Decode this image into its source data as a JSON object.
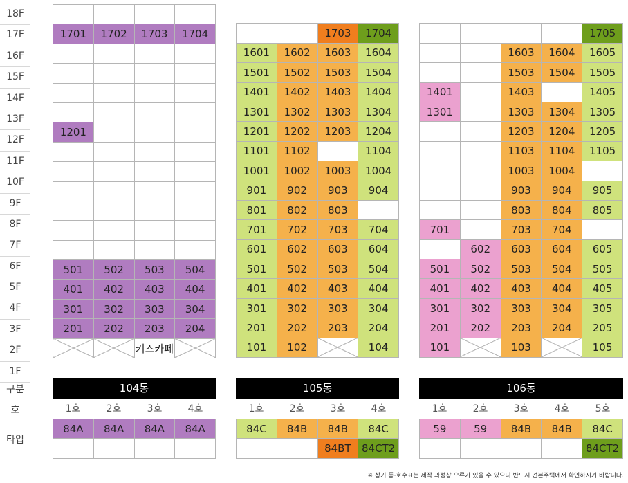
{
  "floors": [
    "18F",
    "17F",
    "16F",
    "15F",
    "14F",
    "13F",
    "12F",
    "11F",
    "10F",
    "9F",
    "8F",
    "7F",
    "6F",
    "5F",
    "4F",
    "3F",
    "2F",
    "1F"
  ],
  "row_labels": {
    "gubun": "구분",
    "ho": "호",
    "type": "타입"
  },
  "buildings": [
    {
      "name": "104동",
      "units": [
        "1호",
        "2호",
        "3호",
        "4호"
      ],
      "types": [
        [
          "84A",
          ""
        ],
        [
          "84A",
          ""
        ],
        [
          "84A",
          ""
        ],
        [
          "84A",
          ""
        ]
      ],
      "rows": [
        [
          null,
          null,
          null,
          null
        ],
        [
          [
            "1701",
            "p"
          ],
          [
            "1702",
            "p"
          ],
          [
            "1703",
            "p"
          ],
          [
            "1704",
            "p"
          ]
        ],
        [
          null,
          null,
          null,
          null
        ],
        [
          null,
          null,
          null,
          null
        ],
        [
          null,
          null,
          null,
          null
        ],
        [
          null,
          null,
          null,
          null
        ],
        [
          [
            "1201",
            "p"
          ],
          null,
          null,
          null
        ],
        [
          null,
          null,
          null,
          null
        ],
        [
          null,
          null,
          null,
          null
        ],
        [
          null,
          null,
          null,
          null
        ],
        [
          null,
          null,
          null,
          null
        ],
        [
          null,
          null,
          null,
          null
        ],
        [
          null,
          null,
          null,
          null
        ],
        [
          [
            "501",
            "p"
          ],
          [
            "502",
            "p"
          ],
          [
            "503",
            "p"
          ],
          [
            "504",
            "p"
          ]
        ],
        [
          [
            "401",
            "p"
          ],
          [
            "402",
            "p"
          ],
          [
            "403",
            "p"
          ],
          [
            "404",
            "p"
          ]
        ],
        [
          [
            "301",
            "p"
          ],
          [
            "302",
            "p"
          ],
          [
            "303",
            "p"
          ],
          [
            "304",
            "p"
          ]
        ],
        [
          [
            "201",
            "p"
          ],
          [
            "202",
            "p"
          ],
          [
            "203",
            "p"
          ],
          [
            "204",
            "p"
          ]
        ],
        [
          [
            "",
            "x"
          ],
          [
            "",
            "x"
          ],
          [
            "키즈카페",
            ""
          ],
          [
            "",
            "x"
          ]
        ]
      ]
    },
    {
      "name": "105동",
      "units": [
        "1호",
        "2호",
        "3호",
        "4호"
      ],
      "types": [
        [
          "84C",
          ""
        ],
        [
          "84B",
          ""
        ],
        [
          "84B",
          "84BT"
        ],
        [
          "84C",
          "84CT2"
        ]
      ],
      "rows": [
        "none",
        [
          null,
          null,
          [
            "1703",
            "do"
          ],
          [
            "1704",
            "dg"
          ]
        ],
        [
          [
            "1601",
            "g"
          ],
          [
            "1602",
            "o"
          ],
          [
            "1603",
            "o"
          ],
          [
            "1604",
            "g"
          ]
        ],
        [
          [
            "1501",
            "g"
          ],
          [
            "1502",
            "o"
          ],
          [
            "1503",
            "o"
          ],
          [
            "1504",
            "g"
          ]
        ],
        [
          [
            "1401",
            "g"
          ],
          [
            "1402",
            "o"
          ],
          [
            "1403",
            "o"
          ],
          [
            "1404",
            "g"
          ]
        ],
        [
          [
            "1301",
            "g"
          ],
          [
            "1302",
            "o"
          ],
          [
            "1303",
            "o"
          ],
          [
            "1304",
            "g"
          ]
        ],
        [
          [
            "1201",
            "g"
          ],
          [
            "1202",
            "o"
          ],
          [
            "1203",
            "o"
          ],
          [
            "1204",
            "g"
          ]
        ],
        [
          [
            "1101",
            "g"
          ],
          [
            "1102",
            "o"
          ],
          null,
          [
            "1104",
            "g"
          ]
        ],
        [
          [
            "1001",
            "g"
          ],
          [
            "1002",
            "o"
          ],
          [
            "1003",
            "o"
          ],
          [
            "1004",
            "g"
          ]
        ],
        [
          [
            "901",
            "g"
          ],
          [
            "902",
            "o"
          ],
          [
            "903",
            "o"
          ],
          [
            "904",
            "g"
          ]
        ],
        [
          [
            "801",
            "g"
          ],
          [
            "802",
            "o"
          ],
          [
            "803",
            "o"
          ],
          null
        ],
        [
          [
            "701",
            "g"
          ],
          [
            "702",
            "o"
          ],
          [
            "703",
            "o"
          ],
          [
            "704",
            "g"
          ]
        ],
        [
          [
            "601",
            "g"
          ],
          [
            "602",
            "o"
          ],
          [
            "603",
            "o"
          ],
          [
            "604",
            "g"
          ]
        ],
        [
          [
            "501",
            "g"
          ],
          [
            "502",
            "o"
          ],
          [
            "503",
            "o"
          ],
          [
            "504",
            "g"
          ]
        ],
        [
          [
            "401",
            "g"
          ],
          [
            "402",
            "o"
          ],
          [
            "403",
            "o"
          ],
          [
            "404",
            "g"
          ]
        ],
        [
          [
            "301",
            "g"
          ],
          [
            "302",
            "o"
          ],
          [
            "303",
            "o"
          ],
          [
            "304",
            "g"
          ]
        ],
        [
          [
            "201",
            "g"
          ],
          [
            "202",
            "o"
          ],
          [
            "203",
            "o"
          ],
          [
            "204",
            "g"
          ]
        ],
        [
          [
            "101",
            "g"
          ],
          [
            "102",
            "o"
          ],
          [
            "",
            "x"
          ],
          [
            "104",
            "g"
          ]
        ]
      ]
    },
    {
      "name": "106동",
      "units": [
        "1호",
        "2호",
        "3호",
        "4호",
        "5호"
      ],
      "types": [
        [
          "59",
          ""
        ],
        [
          "59",
          ""
        ],
        [
          "84B",
          ""
        ],
        [
          "84B",
          ""
        ],
        [
          "84C",
          "84CT2"
        ]
      ],
      "rows": [
        "none",
        [
          null,
          null,
          null,
          null,
          [
            "1705",
            "dg"
          ]
        ],
        [
          null,
          null,
          [
            "1603",
            "o"
          ],
          [
            "1604",
            "o"
          ],
          [
            "1605",
            "g"
          ]
        ],
        [
          null,
          null,
          [
            "1503",
            "o"
          ],
          [
            "1504",
            "o"
          ],
          [
            "1505",
            "g"
          ]
        ],
        [
          [
            "1401",
            "k"
          ],
          null,
          [
            "1403",
            "o"
          ],
          null,
          [
            "1405",
            "g"
          ]
        ],
        [
          [
            "1301",
            "k"
          ],
          null,
          [
            "1303",
            "o"
          ],
          [
            "1304",
            "o"
          ],
          [
            "1305",
            "g"
          ]
        ],
        [
          null,
          null,
          [
            "1203",
            "o"
          ],
          [
            "1204",
            "o"
          ],
          [
            "1205",
            "g"
          ]
        ],
        [
          null,
          null,
          [
            "1103",
            "o"
          ],
          [
            "1104",
            "o"
          ],
          [
            "1105",
            "g"
          ]
        ],
        [
          null,
          null,
          [
            "1003",
            "o"
          ],
          [
            "1004",
            "o"
          ],
          null
        ],
        [
          null,
          null,
          [
            "903",
            "o"
          ],
          [
            "904",
            "o"
          ],
          [
            "905",
            "g"
          ]
        ],
        [
          null,
          null,
          [
            "803",
            "o"
          ],
          [
            "804",
            "o"
          ],
          [
            "805",
            "g"
          ]
        ],
        [
          [
            "701",
            "k"
          ],
          null,
          [
            "703",
            "o"
          ],
          [
            "704",
            "o"
          ],
          null
        ],
        [
          null,
          [
            "602",
            "k"
          ],
          [
            "603",
            "o"
          ],
          [
            "604",
            "o"
          ],
          [
            "605",
            "g"
          ]
        ],
        [
          [
            "501",
            "k"
          ],
          [
            "502",
            "k"
          ],
          [
            "503",
            "o"
          ],
          [
            "504",
            "o"
          ],
          [
            "505",
            "g"
          ]
        ],
        [
          [
            "401",
            "k"
          ],
          [
            "402",
            "k"
          ],
          [
            "403",
            "o"
          ],
          [
            "404",
            "o"
          ],
          [
            "405",
            "g"
          ]
        ],
        [
          [
            "301",
            "k"
          ],
          [
            "302",
            "k"
          ],
          [
            "303",
            "o"
          ],
          [
            "304",
            "o"
          ],
          [
            "305",
            "g"
          ]
        ],
        [
          [
            "201",
            "k"
          ],
          [
            "202",
            "k"
          ],
          [
            "203",
            "o"
          ],
          [
            "204",
            "o"
          ],
          [
            "205",
            "g"
          ]
        ],
        [
          [
            "101",
            "k"
          ],
          [
            "",
            "x"
          ],
          [
            "103",
            "o"
          ],
          [
            "",
            "x"
          ],
          [
            "105",
            "g"
          ]
        ]
      ]
    }
  ],
  "colors": {
    "p": "#b07cc0",
    "g": "#cfe27c",
    "o": "#f5b14b",
    "k": "#eba1cf",
    "do": "#f07e1e",
    "dg": "#6e9e1c"
  },
  "note": "※ 상기 동·호수표는 제작 과정상 오류가 있을 수 있으니 반드시 견본주택에서 확인하시기 바랍니다."
}
